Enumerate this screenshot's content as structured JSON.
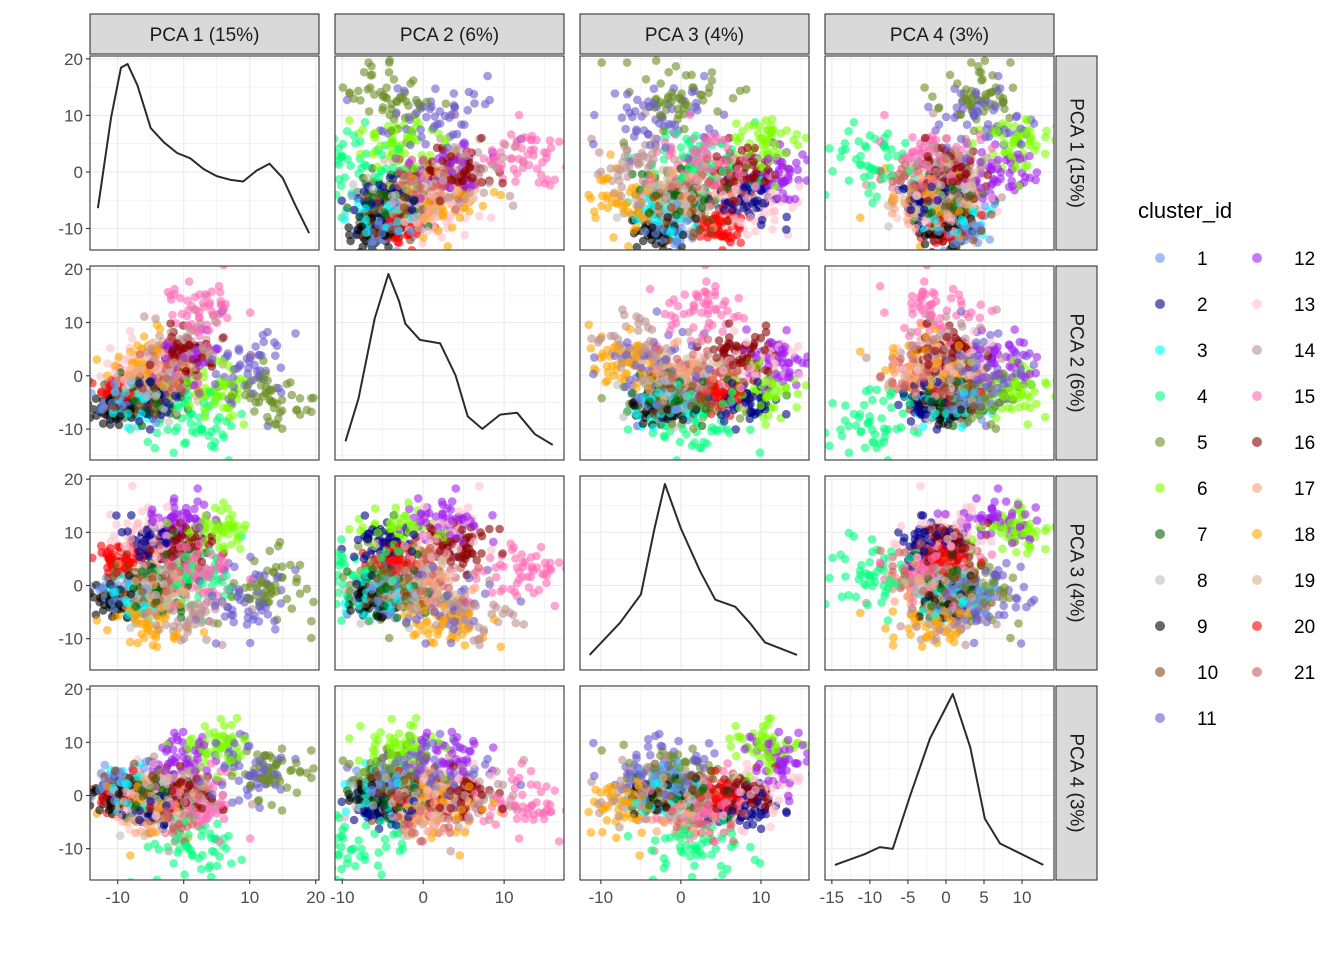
{
  "chart_data": {
    "type": "scatter",
    "layout": "pairs-matrix",
    "variables": [
      {
        "label": "PCA 1 (15%)",
        "range": [
          -14.2,
          20.5
        ],
        "ticks": [
          -10,
          0,
          10,
          20
        ]
      },
      {
        "label": "PCA 2 (6%)",
        "range": [
          -10.9,
          17.4
        ],
        "ticks": [
          -10,
          0,
          10
        ]
      },
      {
        "label": "PCA 3 (4%)",
        "range": [
          -12.6,
          16.0
        ],
        "ticks": [
          -10,
          0,
          10
        ]
      },
      {
        "label": "PCA 4 (3%)",
        "range": [
          -15.9,
          14.2
        ],
        "ticks": [
          -15,
          -10,
          -5,
          0,
          5,
          10
        ]
      }
    ],
    "row_axes": [
      {
        "range": [
          -13.8,
          20.5
        ],
        "ticks": [
          -10,
          0,
          10,
          20
        ]
      },
      {
        "range": [
          -15.8,
          20.6
        ],
        "ticks": [
          -10,
          0,
          10,
          20
        ]
      },
      {
        "range": [
          -15.9,
          20.6
        ],
        "ticks": [
          -10,
          0,
          10,
          20
        ]
      },
      {
        "range": [
          -15.9,
          20.6
        ],
        "ticks": [
          -10,
          0,
          10,
          20
        ]
      }
    ],
    "grid": true,
    "point_alpha": 0.6,
    "legend": {
      "title": "cluster_id",
      "placement": "right",
      "columns": 2
    },
    "clusters": [
      {
        "id": "1",
        "color": "#6495ED",
        "mean": [
          -10,
          -5,
          -2,
          2
        ],
        "sd": 2.0
      },
      {
        "id": "2",
        "color": "#00008B",
        "mean": [
          -5,
          -5,
          8,
          -2
        ],
        "sd": 2.0
      },
      {
        "id": "3",
        "color": "#00FFFF",
        "mean": [
          -8,
          -5,
          -2,
          0
        ],
        "sd": 2.0
      },
      {
        "id": "4",
        "color": "#00FF7F",
        "mean": [
          2,
          -8,
          2,
          -10
        ],
        "sd": 3.5
      },
      {
        "id": "5",
        "color": "#6B8E23",
        "mean": [
          14,
          -4,
          0,
          3
        ],
        "sd": 3.2
      },
      {
        "id": "6",
        "color": "#7FFF00",
        "mean": [
          5,
          -3,
          10,
          9
        ],
        "sd": 2.5
      },
      {
        "id": "7",
        "color": "#006400",
        "mean": [
          -4,
          -4,
          0,
          0
        ],
        "sd": 2.5
      },
      {
        "id": "8",
        "color": "#BEBEBE",
        "mean": [
          -6,
          -3,
          0,
          0
        ],
        "sd": 2.5
      },
      {
        "id": "9",
        "color": "#000000",
        "mean": [
          -11,
          -6,
          -3,
          0
        ],
        "sd": 1.8
      },
      {
        "id": "10",
        "color": "#8B4513",
        "mean": [
          -8,
          -4,
          -1,
          1
        ],
        "sd": 2.2
      },
      {
        "id": "11",
        "color": "#6A5ACD",
        "mean": [
          10,
          2,
          -2,
          5
        ],
        "sd": 3.8
      },
      {
        "id": "12",
        "color": "#A020F0",
        "mean": [
          0,
          3,
          12,
          7
        ],
        "sd": 2.5
      },
      {
        "id": "13",
        "color": "#FFC0CB",
        "mean": [
          -6,
          2,
          10,
          1
        ],
        "sd": 3.0
      },
      {
        "id": "14",
        "color": "#BC8F8F",
        "mean": [
          0,
          5,
          -5,
          0
        ],
        "sd": 3.0
      },
      {
        "id": "15",
        "color": "#FF69B4",
        "mean": [
          2,
          12,
          2,
          -1
        ],
        "sd": 3.0
      },
      {
        "id": "16",
        "color": "#8B0000",
        "mean": [
          0,
          4,
          8,
          0
        ],
        "sd": 2.2
      },
      {
        "id": "17",
        "color": "#FFA07A",
        "mean": [
          -5,
          0,
          0,
          -2
        ],
        "sd": 2.5
      },
      {
        "id": "18",
        "color": "#FFA500",
        "mean": [
          -6,
          3,
          -7,
          -2
        ],
        "sd": 2.8
      },
      {
        "id": "19",
        "color": "#D2B48C",
        "mean": [
          -3,
          0,
          0,
          0
        ],
        "sd": 2.5
      },
      {
        "id": "20",
        "color": "#FF0000",
        "mean": [
          -10,
          -3,
          5,
          0
        ],
        "sd": 1.5
      },
      {
        "id": "21",
        "color": "#CD5C5C",
        "mean": [
          -2,
          0,
          3,
          -3
        ],
        "sd": 2.5
      }
    ],
    "densities": [
      {
        "x": [
          -13,
          -11,
          -9.5,
          -8.5,
          -7,
          -5,
          -3,
          -1,
          1,
          3,
          5,
          7,
          9,
          11,
          13,
          15,
          17,
          19
        ],
        "density_rel": [
          0.19,
          0.7,
          0.98,
          1,
          0.88,
          0.64,
          0.56,
          0.5,
          0.47,
          0.41,
          0.37,
          0.35,
          0.34,
          0.4,
          0.44,
          0.36,
          0.2,
          0.05
        ]
      },
      {
        "x": [
          -9.6,
          -8,
          -6,
          -4.3,
          -3,
          -2.2,
          -0.4,
          2.1,
          4,
          5.5,
          7.3,
          9.5,
          11.6,
          13.8,
          16
        ],
        "density_rel": [
          0.06,
          0.3,
          0.75,
          1,
          0.85,
          0.72,
          0.63,
          0.61,
          0.43,
          0.2,
          0.13,
          0.21,
          0.22,
          0.1,
          0.04
        ]
      },
      {
        "x": [
          -11.4,
          -7.6,
          -5,
          -3.3,
          -2,
          0,
          2.4,
          4.3,
          6.8,
          8.6,
          10.5,
          14.5
        ],
        "density_rel": [
          0.04,
          0.22,
          0.38,
          0.75,
          1,
          0.75,
          0.51,
          0.35,
          0.31,
          0.22,
          0.11,
          0.04
        ]
      },
      {
        "x": [
          -14.6,
          -10.7,
          -8.7,
          -7,
          -4.7,
          -2.1,
          0.9,
          3.2,
          5.1,
          7.1,
          12.8
        ],
        "density_rel": [
          0.04,
          0.1,
          0.14,
          0.13,
          0.43,
          0.75,
          1,
          0.7,
          0.3,
          0.16,
          0.04
        ]
      }
    ]
  }
}
